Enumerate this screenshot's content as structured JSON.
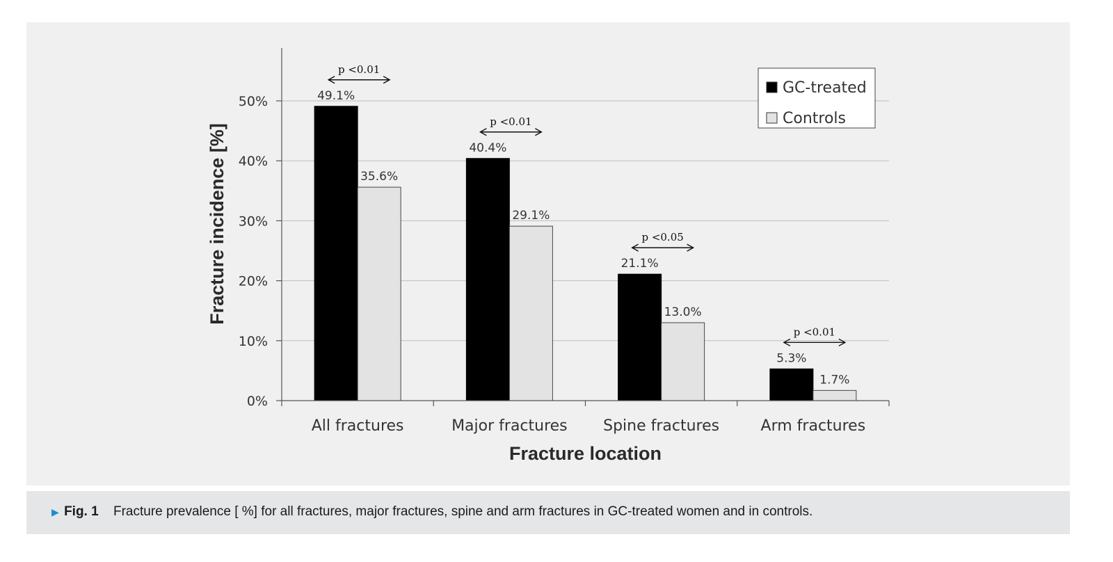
{
  "chart_data": {
    "type": "bar",
    "categories": [
      "All fractures",
      "Major fractures",
      "Spine fractures",
      "Arm fractures"
    ],
    "series": [
      {
        "name": "GC-treated",
        "values": [
          49.1,
          40.4,
          21.1,
          5.3
        ],
        "labels": [
          "49.1%",
          "40.4%",
          "21.1%",
          "5.3%"
        ],
        "color": "#000000"
      },
      {
        "name": "Controls",
        "values": [
          35.6,
          29.1,
          13.0,
          1.7
        ],
        "labels": [
          "35.6%",
          "29.1%",
          "13.0%",
          "1.7%"
        ],
        "color": "#e3e3e3"
      }
    ],
    "xlabel": "Fracture location",
    "ylabel": "Fracture incidence  [%]",
    "ylim": [
      0,
      50
    ],
    "yticks": [
      0,
      10,
      20,
      30,
      40,
      50
    ],
    "ytick_labels": [
      "0%",
      "10%",
      "20%",
      "30%",
      "40%",
      "50%"
    ],
    "grid": true,
    "legend_position": "top-right",
    "annotations": [
      "p <0.01",
      "p <0.01",
      "p <0.05",
      "p <0.01"
    ]
  },
  "caption": {
    "label": "Fig. 1",
    "text": "Fracture prevalence [ %] for all fractures, major fractures, spine and arm fractures in GC-treated women and in controls."
  },
  "colors": {
    "panel": "#f0f0f0",
    "caption_bar": "#e5e6e7",
    "caption_arrow": "#1a8fd0",
    "grid": "#bdbdbd"
  }
}
